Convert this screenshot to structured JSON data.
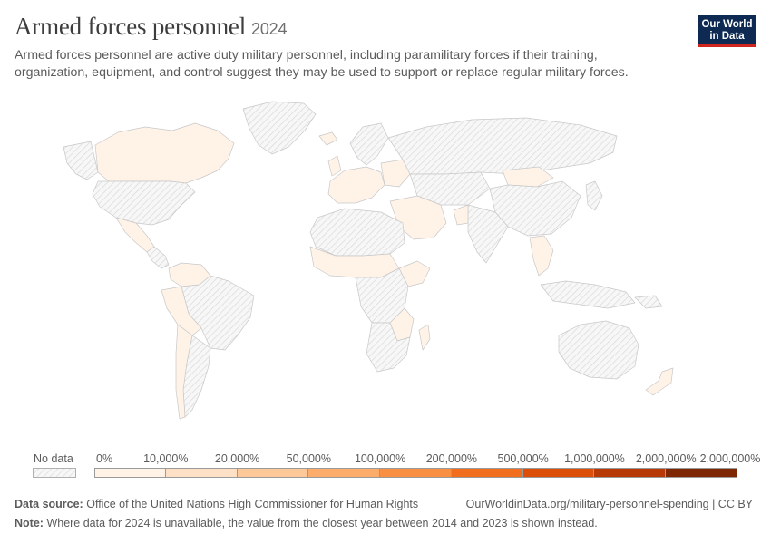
{
  "header": {
    "title": "Armed forces personnel",
    "year": "2024",
    "subtitle": "Armed forces personnel are active duty military personnel, including paramilitary forces if their training, organization, equipment, and control suggest they may be used to support or replace regular military forces."
  },
  "logo": {
    "line1": "Our World",
    "line2": "in Data",
    "bg": "#0e2a52",
    "accent": "#ce261e"
  },
  "legend": {
    "no_data_label": "No data",
    "bins": [
      {
        "label": "0%",
        "color": "#fff3e8"
      },
      {
        "label": "10,000%",
        "color": "#fde0c5"
      },
      {
        "label": "20,000%",
        "color": "#fdc998"
      },
      {
        "label": "50,000%",
        "color": "#fcad6c"
      },
      {
        "label": "100,000%",
        "color": "#f98f43"
      },
      {
        "label": "200,000%",
        "color": "#f26e1f"
      },
      {
        "label": "500,000%",
        "color": "#dc4f0b"
      },
      {
        "label": "1,000,000%",
        "color": "#b73a06"
      },
      {
        "label": "2,000,000%",
        "color": "#7f2704"
      }
    ],
    "last_label": "2,000,000%"
  },
  "footer": {
    "source_label": "Data source:",
    "source": "Office of the United Nations High Commissioner for Human Rights",
    "site": "OurWorldinData.org/military-personnel-spending | CC BY",
    "note_label": "Note:",
    "note": "Where data for 2024 is unavailable, the value from the closest year between 2014 and 2023 is shown instead."
  },
  "map": {
    "no_data_color": "#e6e6e6",
    "data_color": "#fff3e8"
  }
}
